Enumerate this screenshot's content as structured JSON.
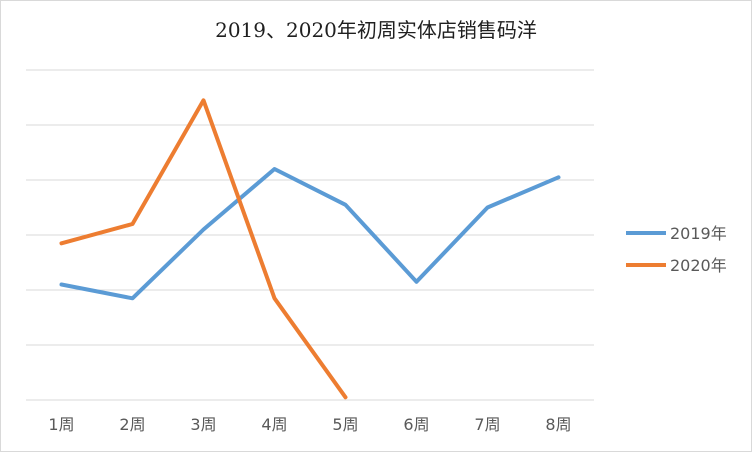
{
  "chart_data": {
    "type": "line",
    "title": "2019、2020年初周实体店销售码洋",
    "categories": [
      "1周",
      "2周",
      "3周",
      "4周",
      "5周",
      "6周",
      "7周",
      "8周"
    ],
    "ylim": [
      0,
      6
    ],
    "grid": true,
    "y_tick_labels_visible": false,
    "legend_position": "right",
    "series": [
      {
        "name": "2019年",
        "color": "#5b9bd5",
        "values": [
          2.1,
          1.85,
          3.1,
          4.2,
          3.55,
          2.15,
          3.5,
          4.05
        ]
      },
      {
        "name": "2020年",
        "color": "#ed7d31",
        "values": [
          2.85,
          3.2,
          5.45,
          1.85,
          0.05,
          null,
          null,
          null
        ]
      }
    ]
  }
}
